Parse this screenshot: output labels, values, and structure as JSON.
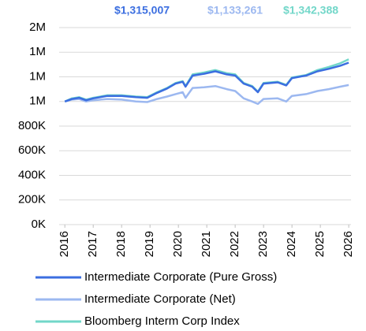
{
  "chart_data": {
    "type": "line",
    "x": [
      2016,
      2016.25,
      2016.5,
      2016.75,
      2017,
      2017.5,
      2018,
      2018.5,
      2018.9,
      2019.25,
      2019.6,
      2019.9,
      2020.15,
      2020.25,
      2020.5,
      2020.9,
      2021.3,
      2021.7,
      2022,
      2022.3,
      2022.6,
      2022.8,
      2023,
      2023.5,
      2023.8,
      2024,
      2024.5,
      2024.9,
      2025.3,
      2025.7,
      2026
    ],
    "series": [
      {
        "name": "Intermediate Corporate (Pure Gross)",
        "color": "#3b6ee0",
        "end_label": "$1,315,007",
        "values": [
          1000000,
          1020000,
          1030000,
          1010000,
          1025000,
          1045000,
          1045000,
          1035000,
          1030000,
          1070000,
          1105000,
          1145000,
          1160000,
          1120000,
          1210000,
          1225000,
          1245000,
          1220000,
          1210000,
          1145000,
          1120000,
          1075000,
          1145000,
          1155000,
          1130000,
          1190000,
          1210000,
          1245000,
          1265000,
          1290000,
          1315007
        ]
      },
      {
        "name": "Intermediate Corporate (Net)",
        "color": "#9cb8f0",
        "end_label": "$1,133,261",
        "values": [
          1000000,
          1015000,
          1020000,
          1000000,
          1010000,
          1020000,
          1015000,
          1000000,
          995000,
          1020000,
          1040000,
          1060000,
          1075000,
          1030000,
          1110000,
          1115000,
          1125000,
          1100000,
          1085000,
          1025000,
          1000000,
          980000,
          1020000,
          1025000,
          1000000,
          1045000,
          1060000,
          1085000,
          1100000,
          1120000,
          1133261
        ]
      },
      {
        "name": "Bloomberg Interm Corp Index",
        "color": "#72d7c9",
        "end_label": "$1,342,388",
        "values": [
          1000000,
          1025000,
          1035000,
          1015000,
          1030000,
          1050000,
          1050000,
          1040000,
          1035000,
          1075000,
          1110000,
          1150000,
          1165000,
          1125000,
          1220000,
          1235000,
          1255000,
          1230000,
          1220000,
          1150000,
          1125000,
          1080000,
          1150000,
          1160000,
          1135000,
          1195000,
          1215000,
          1255000,
          1280000,
          1310000,
          1342388
        ]
      }
    ],
    "xlim": [
      2015.8,
      2026.08
    ],
    "xticks": [
      2016,
      2017,
      2018,
      2019,
      2020,
      2021,
      2022,
      2023,
      2024,
      2025,
      2026
    ],
    "ylim": [
      0,
      1600000
    ],
    "yticks": [
      {
        "value": 0,
        "label": "0K"
      },
      {
        "value": 200000,
        "label": "200K"
      },
      {
        "value": 400000,
        "label": "400K"
      },
      {
        "value": 600000,
        "label": "600K"
      },
      {
        "value": 800000,
        "label": "800K"
      },
      {
        "value": 1000000,
        "label": "1M"
      },
      {
        "value": 1200000,
        "label": "1M"
      },
      {
        "value": 1400000,
        "label": "1M"
      },
      {
        "value": 1600000,
        "label": "2M"
      }
    ],
    "grid": true
  }
}
